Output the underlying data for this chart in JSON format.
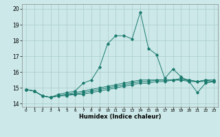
{
  "title": "",
  "xlabel": "Humidex (Indice chaleur)",
  "background_color": "#cce8e8",
  "grid_color": "#aacccc",
  "line_color": "#1a7a6e",
  "xlim": [
    -0.5,
    23.5
  ],
  "ylim": [
    13.8,
    20.3
  ],
  "yticks": [
    14,
    15,
    16,
    17,
    18,
    19,
    20
  ],
  "xtick_labels": [
    "0",
    "1",
    "2",
    "3",
    "4",
    "5",
    "6",
    "7",
    "8",
    "9",
    "10",
    "11",
    "12",
    "13",
    "14",
    "15",
    "16",
    "17",
    "18",
    "19",
    "20",
    "21",
    "22",
    "23"
  ],
  "series": [
    [
      14.9,
      14.8,
      14.5,
      14.4,
      14.6,
      14.7,
      14.8,
      15.3,
      15.5,
      16.3,
      17.8,
      18.3,
      18.3,
      18.1,
      19.8,
      17.5,
      17.1,
      15.6,
      16.2,
      15.7,
      15.4,
      14.7,
      15.3,
      15.4
    ],
    [
      14.9,
      14.8,
      14.5,
      14.4,
      14.5,
      14.6,
      14.7,
      14.8,
      14.9,
      15.0,
      15.1,
      15.2,
      15.3,
      15.4,
      15.5,
      15.5,
      15.5,
      15.5,
      15.5,
      15.5,
      15.4,
      15.4,
      15.4,
      15.4
    ],
    [
      14.9,
      14.8,
      14.5,
      14.4,
      14.5,
      14.6,
      14.6,
      14.7,
      14.8,
      14.9,
      15.0,
      15.1,
      15.2,
      15.3,
      15.4,
      15.4,
      15.5,
      15.5,
      15.5,
      15.6,
      15.5,
      15.4,
      15.5,
      15.5
    ],
    [
      14.9,
      14.8,
      14.5,
      14.4,
      14.5,
      14.5,
      14.6,
      14.6,
      14.7,
      14.8,
      14.9,
      15.0,
      15.1,
      15.2,
      15.3,
      15.3,
      15.4,
      15.4,
      15.5,
      15.5,
      15.5,
      15.4,
      15.5,
      15.4
    ]
  ],
  "marker": "D",
  "marker_size": 1.8,
  "linewidth": 0.7,
  "ylabel_fontsize": 5.5,
  "xlabel_fontsize": 6.0,
  "ytick_fontsize": 5.5,
  "xtick_fontsize": 4.2
}
